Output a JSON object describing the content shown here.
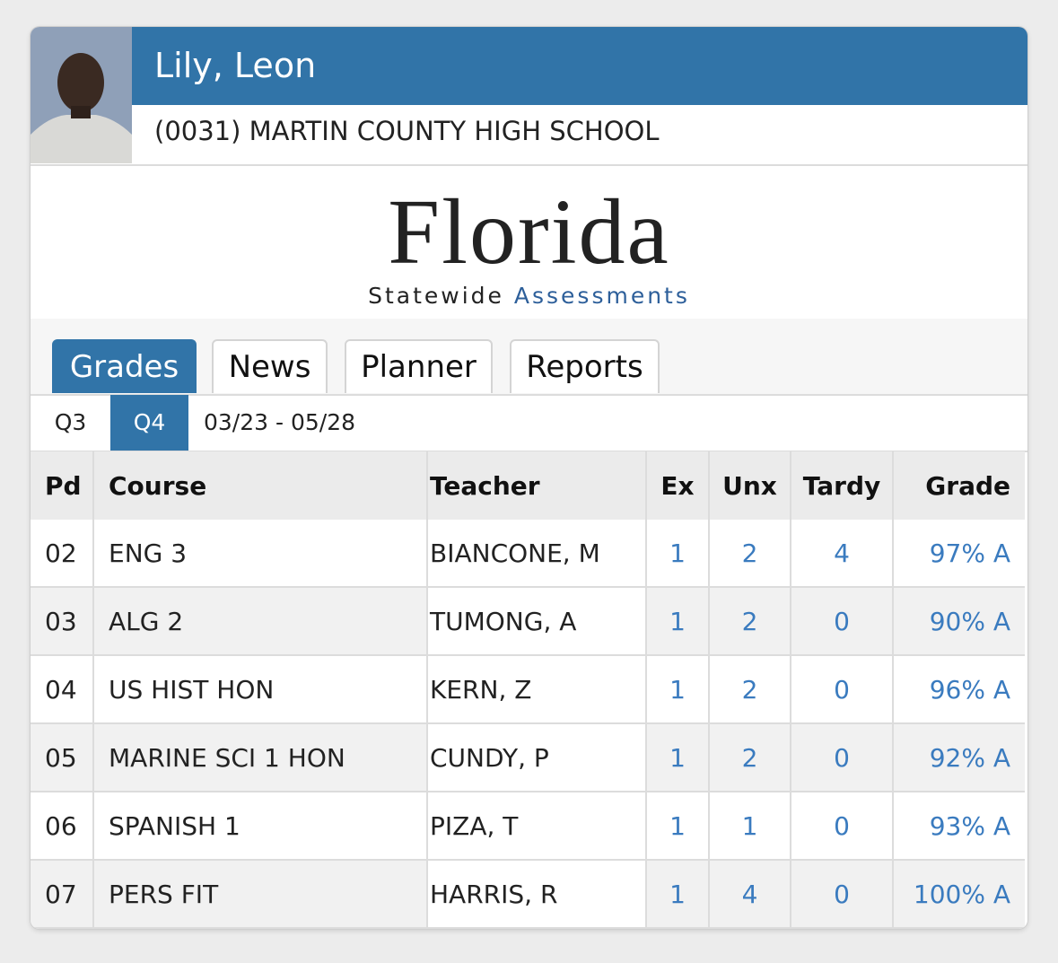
{
  "student": {
    "name": "Lily, Leon",
    "school": "(0031) MARTIN COUNTY HIGH SCHOOL"
  },
  "logo": {
    "title": "Florida",
    "line_1": "Statewide",
    "line_2": "Assessments"
  },
  "tabs": [
    {
      "label": "Grades",
      "active": true
    },
    {
      "label": "News",
      "active": false
    },
    {
      "label": "Planner",
      "active": false
    },
    {
      "label": "Reports",
      "active": false
    }
  ],
  "terms": [
    {
      "label": "Q3",
      "active": false
    },
    {
      "label": "Q4",
      "active": true
    }
  ],
  "date_range": "03/23 - 05/28",
  "table": {
    "columns": [
      "Pd",
      "Course",
      "Teacher",
      "Ex",
      "Unx",
      "Tardy",
      "Grade"
    ],
    "rows": [
      [
        "02",
        "ENG 3",
        "BIANCONE, M",
        "1",
        "2",
        "4",
        "97% A"
      ],
      [
        "03",
        "ALG 2",
        "TUMONG, A",
        "1",
        "2",
        "0",
        "90% A"
      ],
      [
        "04",
        "US HIST HON",
        "KERN, Z",
        "1",
        "2",
        "0",
        "96% A"
      ],
      [
        "05",
        "MARINE SCI 1 HON",
        "CUNDY, P",
        "1",
        "2",
        "0",
        "92% A"
      ],
      [
        "06",
        "SPANISH 1",
        "PIZA, T",
        "1",
        "1",
        "0",
        "93% A"
      ],
      [
        "07",
        "PERS FIT",
        "HARRIS, R",
        "1",
        "4",
        "0",
        "100% A"
      ]
    ]
  }
}
